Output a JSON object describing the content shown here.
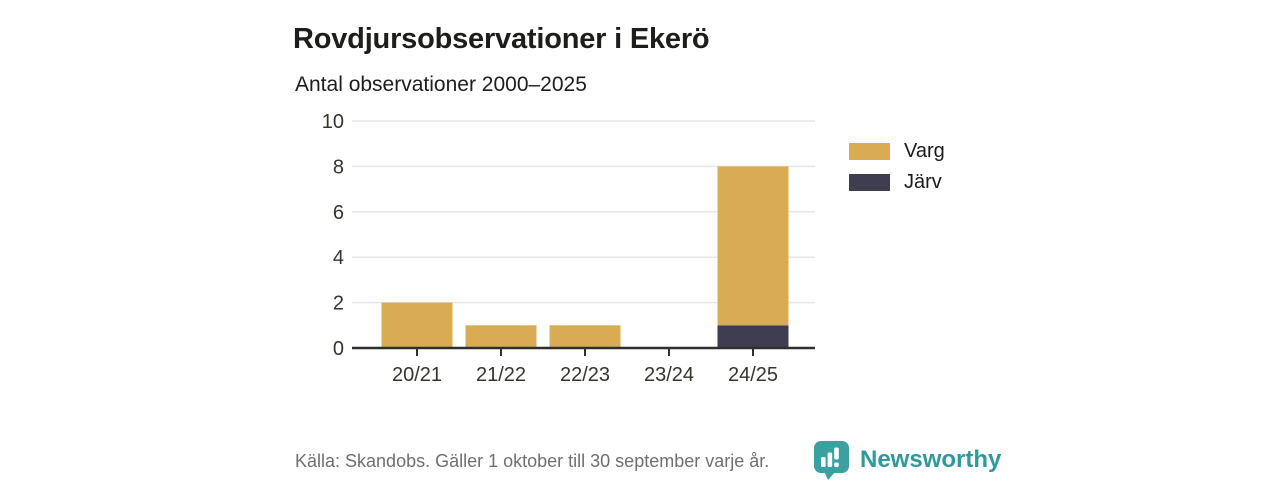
{
  "chart_data": {
    "type": "bar",
    "stacked": true,
    "title": "Rovdjursobservationer i Ekerö",
    "subtitle": "Antal observationer 2000–2025",
    "categories": [
      "20/21",
      "21/22",
      "22/23",
      "23/24",
      "24/25"
    ],
    "series": [
      {
        "name": "Järv",
        "color": "#3e3e50",
        "values": [
          0,
          0,
          0,
          0,
          1
        ]
      },
      {
        "name": "Varg",
        "color": "#d9ab55",
        "values": [
          2,
          1,
          1,
          0,
          7
        ]
      }
    ],
    "totals": [
      2,
      1,
      1,
      0,
      8
    ],
    "legend": [
      {
        "label": "Varg",
        "color": "#d9ab55"
      },
      {
        "label": "Järv",
        "color": "#3e3e50"
      }
    ],
    "legend_position": "right",
    "xlabel": "",
    "ylabel": "",
    "ylim": [
      0,
      10
    ],
    "yticks": [
      0,
      2,
      4,
      6,
      8,
      10
    ],
    "grid": true,
    "gridline_color": "#e6e6e6",
    "axis_line_color": "#2f2f2f",
    "tick_label_color": "#35342f"
  },
  "footer": {
    "source": "Källa: Skandobs. Gäller 1 oktober till 30 september varje år.",
    "brand": "Newsworthy",
    "brand_color": "#2e9a9a",
    "logo_bubble_color": "#3ba0a0"
  }
}
